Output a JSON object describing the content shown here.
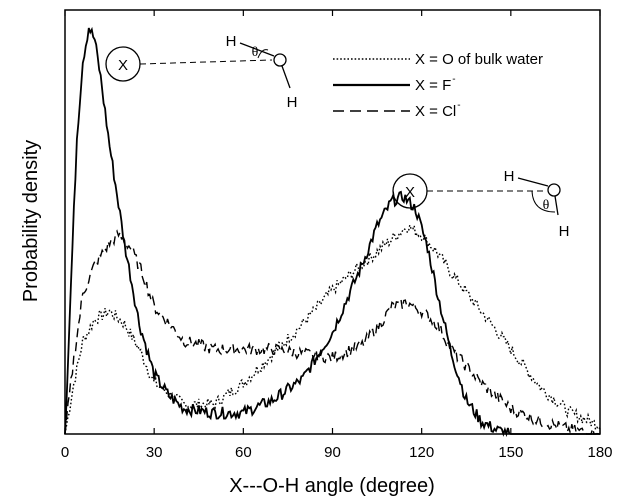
{
  "chart_data": {
    "type": "line",
    "title": "",
    "xlabel": "X---O-H angle (degree)",
    "ylabel": "Probability density",
    "xlim": [
      0,
      180
    ],
    "ylim": [
      0,
      1
    ],
    "xticks": [
      "0",
      "30",
      "60",
      "90",
      "120",
      "150",
      "180"
    ],
    "yticks_shown": false,
    "legend_position": "top-right",
    "series": [
      {
        "name": "X = O of bulk water",
        "style": "dotted",
        "legend_main": "X = O of bulk water",
        "legend_sup": "",
        "x": [
          0,
          3,
          6,
          10,
          15,
          20,
          25,
          30,
          40,
          50,
          60,
          70,
          80,
          90,
          100,
          110,
          115,
          120,
          125,
          130,
          140,
          150,
          160,
          170,
          180
        ],
        "y": [
          0.0,
          0.12,
          0.22,
          0.27,
          0.29,
          0.26,
          0.2,
          0.12,
          0.07,
          0.07,
          0.12,
          0.19,
          0.26,
          0.34,
          0.4,
          0.46,
          0.49,
          0.47,
          0.43,
          0.38,
          0.29,
          0.2,
          0.11,
          0.05,
          0.02
        ]
      },
      {
        "name": "X = F-",
        "style": "solid",
        "legend_main": "X = F",
        "legend_sup": "-",
        "x": [
          0,
          2,
          4,
          6,
          8,
          10,
          12,
          15,
          20,
          25,
          30,
          35,
          40,
          50,
          60,
          70,
          80,
          90,
          100,
          105,
          110,
          114,
          118,
          122,
          126,
          130,
          135,
          140,
          145,
          150,
          160,
          170,
          180
        ],
        "y": [
          0.0,
          0.35,
          0.7,
          0.88,
          0.96,
          0.93,
          0.84,
          0.68,
          0.45,
          0.26,
          0.14,
          0.09,
          0.06,
          0.05,
          0.05,
          0.08,
          0.13,
          0.24,
          0.4,
          0.49,
          0.55,
          0.56,
          0.53,
          0.44,
          0.31,
          0.19,
          0.08,
          0.03,
          0.01,
          0.0,
          0.0,
          0.0,
          0.0
        ]
      },
      {
        "name": "X = Cl-",
        "style": "dashed",
        "legend_main": "X = Cl",
        "legend_sup": "-",
        "x": [
          0,
          3,
          6,
          10,
          15,
          18,
          22,
          26,
          30,
          40,
          50,
          60,
          70,
          80,
          90,
          100,
          105,
          110,
          115,
          120,
          125,
          130,
          140,
          150,
          160,
          170,
          180
        ],
        "y": [
          0.0,
          0.18,
          0.33,
          0.4,
          0.45,
          0.47,
          0.44,
          0.38,
          0.3,
          0.22,
          0.2,
          0.2,
          0.2,
          0.19,
          0.18,
          0.21,
          0.25,
          0.3,
          0.31,
          0.29,
          0.26,
          0.2,
          0.12,
          0.06,
          0.03,
          0.01,
          0.0
        ]
      }
    ]
  },
  "insets": {
    "top": {
      "x_label": "X",
      "h_upper": "H",
      "o_label": "O",
      "h_lower": "H",
      "theta": "θ"
    },
    "right": {
      "x_label": "X",
      "h_upper": "H",
      "o_label": "O",
      "h_lower": "H",
      "theta": "θ"
    }
  }
}
